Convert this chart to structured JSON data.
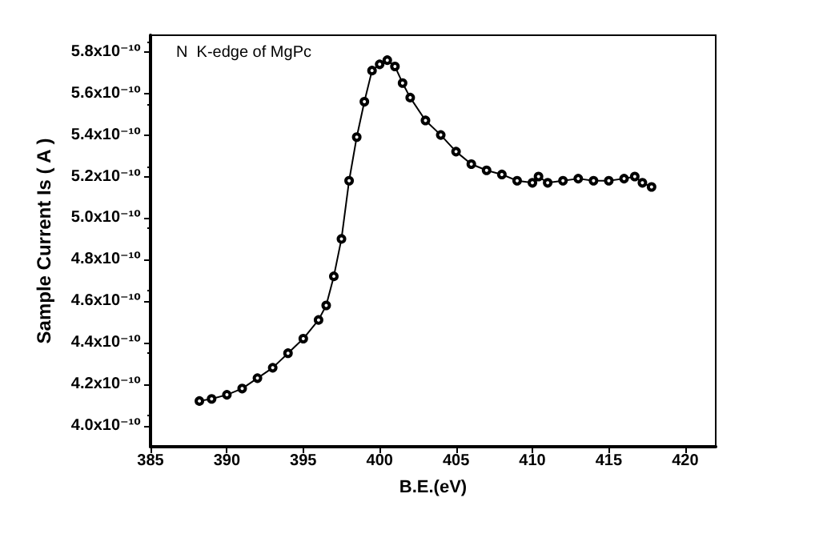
{
  "chart_data": {
    "type": "line",
    "xlabel": "B.E.(eV)",
    "ylabel": "Sample Current Is ( A )",
    "annotations": [
      "N  K-edge of MgPc"
    ],
    "x": [
      388.2,
      389,
      390,
      391,
      392,
      393,
      394,
      395,
      396,
      396.5,
      397,
      397.5,
      398,
      398.5,
      399,
      399.5,
      400,
      400.5,
      401,
      401.5,
      402,
      403,
      404,
      405,
      406,
      407,
      408,
      409,
      410,
      410.4,
      411,
      412,
      413,
      414,
      415,
      416,
      416.7,
      417.2,
      417.8
    ],
    "series": [
      {
        "color": "#000000",
        "values": [
          4.12e-10,
          4.13e-10,
          4.15e-10,
          4.18e-10,
          4.23e-10,
          4.28e-10,
          4.35e-10,
          4.42e-10,
          4.51e-10,
          4.58e-10,
          4.72e-10,
          4.9e-10,
          5.18e-10,
          5.39e-10,
          5.56e-10,
          5.71e-10,
          5.74e-10,
          5.76e-10,
          5.73e-10,
          5.65e-10,
          5.58e-10,
          5.47e-10,
          5.4e-10,
          5.32e-10,
          5.26e-10,
          5.23e-10,
          5.21e-10,
          5.18e-10,
          5.17e-10,
          5.2e-10,
          5.17e-10,
          5.18e-10,
          5.19e-10,
          5.18e-10,
          5.18e-10,
          5.19e-10,
          5.2e-10,
          5.17e-10,
          5.15e-10
        ]
      }
    ],
    "xlim": [
      385,
      422
    ],
    "xticks": [
      385,
      390,
      395,
      400,
      405,
      410,
      415,
      420
    ],
    "ylim": [
      3.9e-10,
      5.88e-10
    ],
    "yticks": [
      {
        "value": 4e-10,
        "label": "4.0x10⁻¹⁰"
      },
      {
        "value": 4.2e-10,
        "label": "4.2x10⁻¹⁰"
      },
      {
        "value": 4.4e-10,
        "label": "4.4x10⁻¹⁰"
      },
      {
        "value": 4.6e-10,
        "label": "4.6x10⁻¹⁰"
      },
      {
        "value": 4.8e-10,
        "label": "4.8x10⁻¹⁰"
      },
      {
        "value": 5e-10,
        "label": "5.0x10⁻¹⁰"
      },
      {
        "value": 5.2e-10,
        "label": "5.2x10⁻¹⁰"
      },
      {
        "value": 5.4e-10,
        "label": "5.4x10⁻¹⁰"
      },
      {
        "value": 5.6e-10,
        "label": "5.6x10⁻¹⁰"
      },
      {
        "value": 5.8e-10,
        "label": "5.8x10⁻¹⁰"
      }
    ],
    "grid": false,
    "marker": "circle",
    "line_style": "solid"
  }
}
